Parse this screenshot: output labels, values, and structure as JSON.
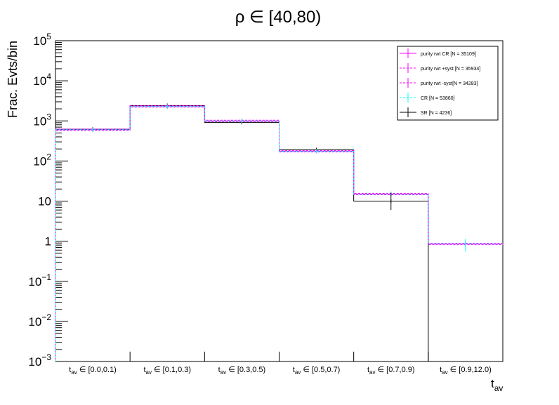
{
  "chart_data": {
    "type": "histogram",
    "title": "ρ ∈ [40,80)",
    "ylabel": "Frac. Evts/bin",
    "xlabel_main": "t",
    "xlabel_sub": "av",
    "y_scale": "log",
    "ylim": [
      0.001,
      100000
    ],
    "y_ticks": [
      {
        "value": 0.001,
        "base": "10",
        "exp": "−3"
      },
      {
        "value": 0.01,
        "base": "10",
        "exp": "−2"
      },
      {
        "value": 0.1,
        "base": "10",
        "exp": "−1"
      },
      {
        "value": 1,
        "base": "1",
        "exp": ""
      },
      {
        "value": 10,
        "base": "10",
        "exp": ""
      },
      {
        "value": 100,
        "base": "10",
        "exp": "2"
      },
      {
        "value": 1000,
        "base": "10",
        "exp": "3"
      },
      {
        "value": 10000,
        "base": "10",
        "exp": "4"
      },
      {
        "value": 100000,
        "base": "10",
        "exp": "5"
      }
    ],
    "categories": [
      {
        "pre": "t",
        "sub": "av",
        "post": " ∈ [0.0,0.1)"
      },
      {
        "pre": "t",
        "sub": "av",
        "post": " ∈ [0.1,0.3)"
      },
      {
        "pre": "t",
        "sub": "av",
        "post": " ∈ [0.3,0.5)"
      },
      {
        "pre": "t",
        "sub": "av",
        "post": " ∈ [0.5,0.7)"
      },
      {
        "pre": "t",
        "sub": "av",
        "post": " ∈ [0.7,0.9)"
      },
      {
        "pre": "t",
        "sub": "av",
        "post": " ∈ [0.9,12.0)"
      }
    ],
    "legend_position": "top-right",
    "series": [
      {
        "name": "purity rwt CR [N = 35109]",
        "color": "#ff00ff",
        "style": "solid",
        "values": [
          600,
          2300,
          1000,
          175,
          15,
          0.85
        ]
      },
      {
        "name": "purity rwt +syst [N = 35934]",
        "color": "#ff00ff",
        "style": "dashed",
        "values": [
          600,
          2300,
          1000,
          175,
          15,
          0.85
        ]
      },
      {
        "name": "purity rwt -syst[N = 34283]",
        "color": "#ff00ff",
        "style": "dashed",
        "values": [
          600,
          2300,
          1000,
          175,
          15,
          0.85
        ]
      },
      {
        "name": "CR [N = 53860]",
        "color": "#00ffff",
        "style": "dashed",
        "values": [
          600,
          2300,
          1000,
          175,
          15,
          0.85
        ]
      },
      {
        "name": "SR [N = 4236]",
        "color": "#000000",
        "style": "solid",
        "values": [
          620,
          2400,
          920,
          190,
          10,
          0.001
        ]
      }
    ],
    "error_bars": [
      {
        "series": "SR [N = 4236]",
        "bin": 4,
        "low": 6,
        "high": 16
      },
      {
        "series": "CR [N = 53860]",
        "bin": 5,
        "low": 0.55,
        "high": 1.15
      }
    ]
  }
}
